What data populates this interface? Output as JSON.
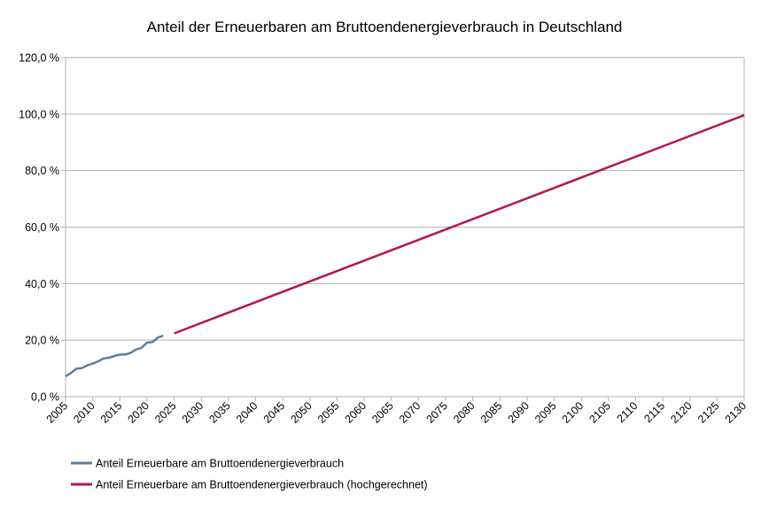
{
  "chart_data": {
    "type": "line",
    "title": "Anteil der Erneuerbaren am Bruttoendenergieverbrauch in Deutschland",
    "xlabel": "",
    "ylabel": "",
    "xlim": [
      2005,
      2130
    ],
    "ylim": [
      0,
      120
    ],
    "x_ticks": [
      2005,
      2010,
      2015,
      2020,
      2025,
      2030,
      2035,
      2040,
      2045,
      2050,
      2055,
      2060,
      2065,
      2070,
      2075,
      2080,
      2085,
      2090,
      2095,
      2100,
      2105,
      2110,
      2115,
      2120,
      2125,
      2130
    ],
    "y_ticks": [
      0,
      20,
      40,
      60,
      80,
      100,
      120
    ],
    "y_tick_labels": [
      "0,0 %",
      "20,0 %",
      "40,0 %",
      "60,0 %",
      "80,0 %",
      "100,0 %",
      "120,0 %"
    ],
    "grid": "horizontal",
    "legend_position": "bottom",
    "series": [
      {
        "name": "Anteil Erneuerbare am Bruttoendenergieverbrauch",
        "color": "#5b7f9e",
        "x": [
          2005,
          2006,
          2007,
          2008,
          2009,
          2010,
          2011,
          2012,
          2013,
          2014,
          2015,
          2016,
          2017,
          2018,
          2019,
          2020,
          2021,
          2022,
          2023
        ],
        "values": [
          7.2,
          8.4,
          9.9,
          10.1,
          11.1,
          11.7,
          12.5,
          13.5,
          13.8,
          14.4,
          14.9,
          14.9,
          15.5,
          16.7,
          17.3,
          19.1,
          19.3,
          20.9,
          21.6
        ]
      },
      {
        "name": "Anteil Erneuerbare am Bruttoendenergieverbrauch (hochgerechnet)",
        "color": "#b5174b",
        "x": [
          2025,
          2130
        ],
        "values": [
          22.4,
          99.6
        ]
      }
    ]
  }
}
